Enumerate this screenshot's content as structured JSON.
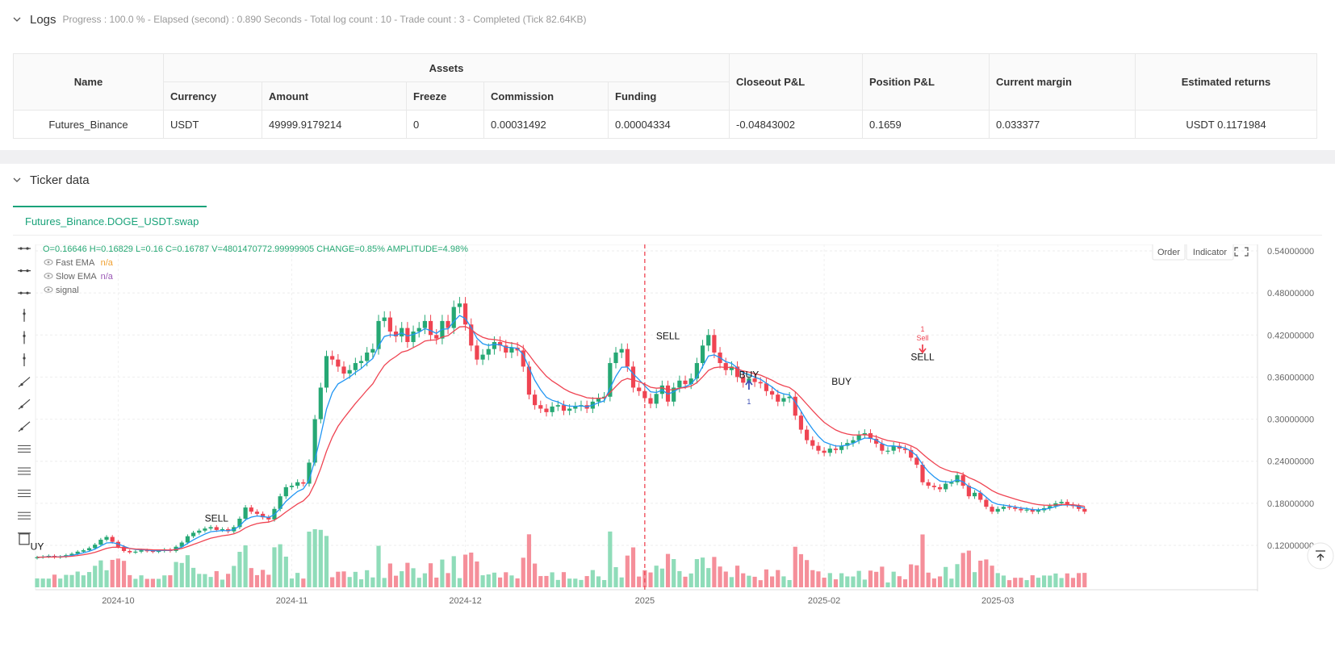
{
  "logs": {
    "title": "Logs",
    "status": "Progress : 100.0 % - Elapsed (second) : 0.890 Seconds - Total log count : 10 - Trade count : 3 - Completed (Tick 82.64KB)"
  },
  "assets_table": {
    "headers": {
      "name": "Name",
      "assets": "Assets",
      "currency": "Currency",
      "amount": "Amount",
      "freeze": "Freeze",
      "commission": "Commission",
      "funding": "Funding",
      "closeout_pl": "Closeout P&L",
      "position_pl": "Position P&L",
      "current_margin": "Current margin",
      "estimated_returns": "Estimated returns"
    },
    "row": {
      "name": "Futures_Binance",
      "currency": "USDT",
      "amount": "49999.9179214",
      "freeze": "0",
      "commission": "0.00031492",
      "funding": "0.00004334",
      "closeout_pl": "-0.04843002",
      "position_pl": "0.1659",
      "current_margin": "0.033377",
      "estimated_returns": "USDT 0.1171984"
    }
  },
  "ticker": {
    "title": "Ticker data",
    "tab_label": "Futures_Binance.DOGE_USDT.swap",
    "ohlc_prefix_o": "O=",
    "ohlc": "O=0.16646 H=0.16829 L=0.16 C=0.16787 V=4801470772.99999905 CHANGE=0.85% AMPLITUDE=4.98%",
    "legend": [
      {
        "name": "Fast EMA",
        "value": "n/a",
        "color": "#f0a030"
      },
      {
        "name": "Slow EMA",
        "value": "n/a",
        "color": "#9b59b6"
      },
      {
        "name": "signal",
        "value": "",
        "color": "#888888"
      }
    ],
    "buttons": {
      "order": "Order",
      "indicator": "Indicator"
    },
    "colors": {
      "up": "#26a874",
      "down": "#ef4452",
      "fast_ema": "#2196f3",
      "slow_ema": "#ef4452",
      "vol_up": "#8fdcb9",
      "vol_down": "#f58f9a"
    }
  },
  "chart_data": {
    "type": "candlestick",
    "y_ticks": [
      "0.54000000",
      "0.48000000",
      "0.42000000",
      "0.36000000",
      "0.30000000",
      "0.24000000",
      "0.18000000",
      "0.12000000"
    ],
    "y_tick_values": [
      0.54,
      0.48,
      0.42,
      0.36,
      0.3,
      0.24,
      0.18,
      0.12
    ],
    "ylim": [
      0.06,
      0.56
    ],
    "x_ticks": [
      {
        "label": "2024-10",
        "index": 14
      },
      {
        "label": "2024-11",
        "index": 44
      },
      {
        "label": "2024-12",
        "index": 74
      },
      {
        "label": "2025",
        "index": 105
      },
      {
        "label": "2025-02",
        "index": 136
      },
      {
        "label": "2025-03",
        "index": 166
      }
    ],
    "closes": [
      0.103,
      0.104,
      0.105,
      0.103,
      0.104,
      0.106,
      0.108,
      0.111,
      0.113,
      0.116,
      0.121,
      0.128,
      0.132,
      0.125,
      0.118,
      0.112,
      0.11,
      0.111,
      0.113,
      0.112,
      0.111,
      0.112,
      0.114,
      0.112,
      0.118,
      0.124,
      0.133,
      0.138,
      0.141,
      0.144,
      0.146,
      0.142,
      0.143,
      0.14,
      0.146,
      0.158,
      0.174,
      0.168,
      0.165,
      0.16,
      0.157,
      0.172,
      0.19,
      0.203,
      0.205,
      0.21,
      0.208,
      0.238,
      0.3,
      0.345,
      0.39,
      0.385,
      0.375,
      0.365,
      0.37,
      0.38,
      0.383,
      0.395,
      0.4,
      0.44,
      0.445,
      0.425,
      0.418,
      0.43,
      0.41,
      0.425,
      0.43,
      0.44,
      0.42,
      0.415,
      0.44,
      0.43,
      0.46,
      0.465,
      0.435,
      0.405,
      0.385,
      0.392,
      0.4,
      0.41,
      0.405,
      0.395,
      0.402,
      0.398,
      0.375,
      0.335,
      0.32,
      0.315,
      0.31,
      0.318,
      0.32,
      0.312,
      0.315,
      0.318,
      0.32,
      0.315,
      0.325,
      0.33,
      0.332,
      0.38,
      0.395,
      0.4,
      0.375,
      0.345,
      0.34,
      0.33,
      0.322,
      0.336,
      0.348,
      0.325,
      0.345,
      0.355,
      0.35,
      0.358,
      0.38,
      0.405,
      0.42,
      0.395,
      0.38,
      0.37,
      0.375,
      0.36,
      0.352,
      0.358,
      0.353,
      0.351,
      0.34,
      0.335,
      0.325,
      0.33,
      0.332,
      0.305,
      0.285,
      0.27,
      0.262,
      0.255,
      0.252,
      0.258,
      0.256,
      0.262,
      0.266,
      0.27,
      0.278,
      0.28,
      0.272,
      0.265,
      0.255,
      0.255,
      0.262,
      0.258,
      0.256,
      0.245,
      0.235,
      0.21,
      0.205,
      0.203,
      0.2,
      0.208,
      0.21,
      0.22,
      0.205,
      0.19,
      0.195,
      0.185,
      0.175,
      0.168,
      0.172,
      0.175,
      0.174,
      0.172,
      0.17,
      0.171,
      0.168,
      0.17,
      0.173,
      0.176,
      0.18,
      0.182,
      0.178,
      0.176,
      0.172,
      0.168
    ],
    "markers": [
      {
        "text": "SELL",
        "index": 31,
        "price": 0.14
      },
      {
        "text": "SELL",
        "index": 109,
        "price": 0.4
      },
      {
        "text": "BUY",
        "index": 123,
        "price": 0.345
      },
      {
        "text": "BUY",
        "index": 139,
        "price": 0.335
      },
      {
        "text": "SELL",
        "index": 153,
        "price": 0.37
      },
      {
        "text": "UY",
        "index": 0,
        "price": 0.1
      }
    ],
    "annotations": [
      {
        "text": "1",
        "sub": "Sell",
        "index": 153
      },
      {
        "text": "1",
        "sub": "",
        "index": 123
      }
    ],
    "vline_index": 105
  }
}
